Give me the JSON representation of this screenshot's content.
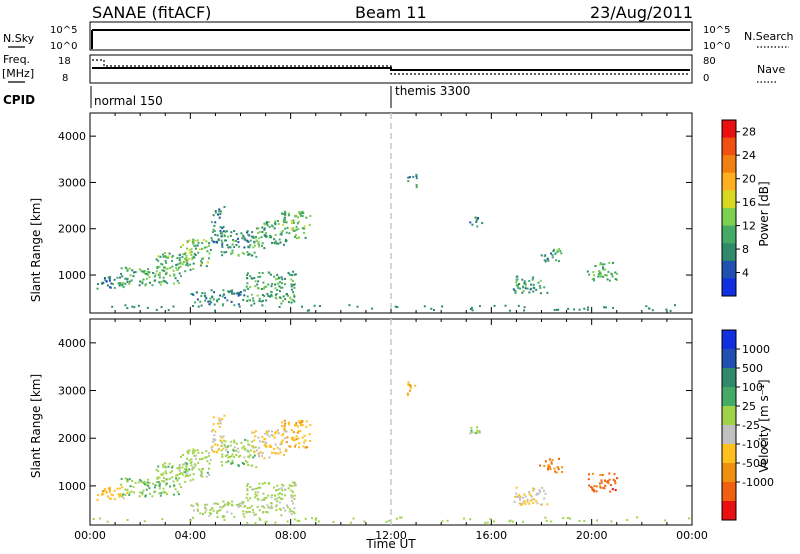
{
  "header": {
    "site": "SANAE (fitACF)",
    "beam": "Beam 11",
    "date": "23/Aug/2011"
  },
  "top_panels": {
    "nsky_label": "N.Sky",
    "nsearch_label": "N.Search",
    "sky_ticks": [
      "10^5",
      "10^0"
    ],
    "freq_label": "Freq.",
    "freq_unit": "[MHz]",
    "freq_ticks": [
      "18",
      "8"
    ],
    "nave_label": "Nave",
    "nave_ticks": [
      "80",
      "0"
    ],
    "cpid_label": "CPID",
    "cpid_segments": [
      {
        "label": "normal 150",
        "start_hour": 0
      },
      {
        "label": "themis 3300",
        "start_hour": 12
      }
    ]
  },
  "chart_data": [
    {
      "type": "heatmap",
      "name": "power-panel",
      "ylabel": "Slant Range [km]",
      "xlim": [
        0,
        24
      ],
      "ylim": [
        180,
        4500
      ],
      "yticks": [
        1000,
        2000,
        3000,
        4000
      ],
      "colorbar": {
        "label": "Power [dB]",
        "ticks": [
          "4",
          "8",
          "12",
          "16",
          "20",
          "24",
          "28"
        ],
        "colors": [
          "#1030e0",
          "#2050b0",
          "#2f8a6a",
          "#44aa66",
          "#7bd04e",
          "#d8d820",
          "#ffb020",
          "#f08010",
          "#f05010",
          "#e81010"
        ],
        "range": [
          0,
          30
        ]
      },
      "reference_line_hour": 12,
      "echo_regions": [
        {
          "x": [
            0.2,
            1.5
          ],
          "y": [
            700,
            1000
          ],
          "value": 8
        },
        {
          "x": [
            1.2,
            3.6
          ],
          "y": [
            800,
            1200
          ],
          "value": 10
        },
        {
          "x": [
            2.6,
            4.2
          ],
          "y": [
            1100,
            1500
          ],
          "value": 12
        },
        {
          "x": [
            3.5,
            4.8
          ],
          "y": [
            1200,
            1800
          ],
          "value": 12
        },
        {
          "x": [
            4.8,
            5.4
          ],
          "y": [
            1700,
            2500
          ],
          "value": 8
        },
        {
          "x": [
            5.2,
            6.6
          ],
          "y": [
            1400,
            2000
          ],
          "value": 9
        },
        {
          "x": [
            6.4,
            7.8
          ],
          "y": [
            1600,
            2200
          ],
          "value": 10
        },
        {
          "x": [
            7.6,
            8.8
          ],
          "y": [
            1800,
            2400
          ],
          "value": 12
        },
        {
          "x": [
            6.2,
            8.2
          ],
          "y": [
            400,
            1100
          ],
          "value": 10
        },
        {
          "x": [
            4.0,
            6.2
          ],
          "y": [
            350,
            700
          ],
          "value": 8
        },
        {
          "x": [
            12.6,
            13.0
          ],
          "y": [
            2900,
            3200
          ],
          "value": 8
        },
        {
          "x": [
            15.1,
            15.6
          ],
          "y": [
            2050,
            2300
          ],
          "value": 8
        },
        {
          "x": [
            16.8,
            18.2
          ],
          "y": [
            600,
            1000
          ],
          "value": 9
        },
        {
          "x": [
            17.9,
            18.8
          ],
          "y": [
            1300,
            1600
          ],
          "value": 9
        },
        {
          "x": [
            19.8,
            21.0
          ],
          "y": [
            900,
            1300
          ],
          "value": 10
        }
      ]
    },
    {
      "type": "heatmap",
      "name": "velocity-panel",
      "xlabel": "Time UT",
      "ylabel": "Slant Range [km]",
      "xlim": [
        0,
        24
      ],
      "ylim": [
        180,
        4500
      ],
      "yticks": [
        1000,
        2000,
        3000,
        4000
      ],
      "xticks": [
        "00:00",
        "04:00",
        "08:00",
        "12:00",
        "16:00",
        "20:00",
        "00:00"
      ],
      "colorbar": {
        "label": "Velocity [m s⁻¹]",
        "ticks": [
          "1000",
          "500",
          "100",
          "25",
          "-25",
          "-100",
          "-500",
          "-1000"
        ],
        "colors": [
          "#1030e0",
          "#2050b0",
          "#2f8a6a",
          "#44aa66",
          "#9fd44a",
          "#c0c0c0",
          "#ffc020",
          "#f09010",
          "#f06010",
          "#e81010"
        ],
        "range": [
          -1000,
          1000
        ]
      },
      "reference_line_hour": 12,
      "echo_regions": [
        {
          "x": [
            0.2,
            1.5
          ],
          "y": [
            700,
            1000
          ],
          "value": -300
        },
        {
          "x": [
            1.2,
            3.6
          ],
          "y": [
            800,
            1200
          ],
          "value": 150
        },
        {
          "x": [
            2.6,
            4.2
          ],
          "y": [
            1100,
            1500
          ],
          "value": 120
        },
        {
          "x": [
            3.5,
            4.8
          ],
          "y": [
            1200,
            1800
          ],
          "value": 80
        },
        {
          "x": [
            4.8,
            5.4
          ],
          "y": [
            1700,
            2500
          ],
          "value": -200
        },
        {
          "x": [
            5.2,
            6.6
          ],
          "y": [
            1400,
            2000
          ],
          "value": 100
        },
        {
          "x": [
            6.4,
            7.8
          ],
          "y": [
            1600,
            2200
          ],
          "value": -200
        },
        {
          "x": [
            7.6,
            8.8
          ],
          "y": [
            1800,
            2400
          ],
          "value": -350
        },
        {
          "x": [
            6.2,
            8.2
          ],
          "y": [
            400,
            1100
          ],
          "value": 70
        },
        {
          "x": [
            4.0,
            6.2
          ],
          "y": [
            350,
            700
          ],
          "value": 60
        },
        {
          "x": [
            12.6,
            13.0
          ],
          "y": [
            2900,
            3200
          ],
          "value": -400
        },
        {
          "x": [
            15.1,
            15.6
          ],
          "y": [
            2050,
            2300
          ],
          "value": 100
        },
        {
          "x": [
            16.8,
            18.2
          ],
          "y": [
            600,
            1000
          ],
          "value": -200
        },
        {
          "x": [
            17.9,
            18.8
          ],
          "y": [
            1300,
            1600
          ],
          "value": -600
        },
        {
          "x": [
            19.8,
            21.0
          ],
          "y": [
            900,
            1300
          ],
          "value": -700
        }
      ]
    }
  ]
}
